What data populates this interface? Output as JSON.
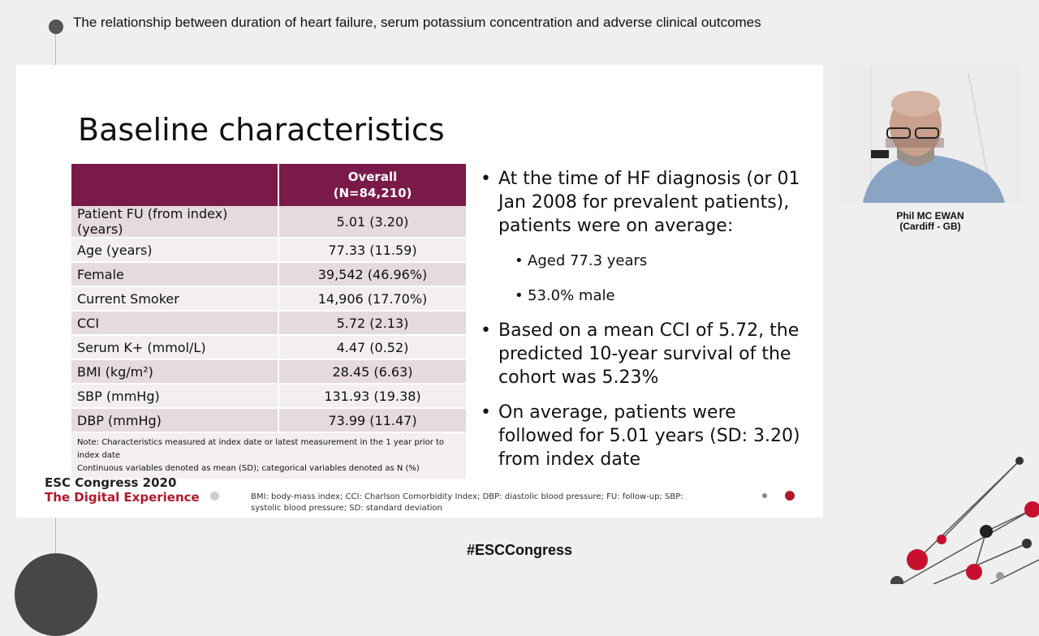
{
  "header": {
    "session_title": "The relationship between duration of heart failure, serum potassium concentration and adverse clinical outcomes"
  },
  "slide": {
    "title": "Baseline characteristics",
    "table": {
      "header_label": "",
      "header_col": "Overall",
      "header_n": "(N=84,210)",
      "rows": [
        {
          "label": "Patient FU (from index) (years)",
          "value": "5.01 (3.20)"
        },
        {
          "label": "Age (years)",
          "value": "77.33 (11.59)"
        },
        {
          "label": "Female",
          "value": "39,542 (46.96%)"
        },
        {
          "label": "Current Smoker",
          "value": "14,906 (17.70%)"
        },
        {
          "label": "CCI",
          "value": "5.72 (2.13)"
        },
        {
          "label": "Serum K+ (mmol/L)",
          "value": "4.47 (0.52)"
        },
        {
          "label": "BMI (kg/m²)",
          "value": "28.45 (6.63)"
        },
        {
          "label": "SBP (mmHg)",
          "value": "131.93 (19.38)"
        },
        {
          "label": "DBP (mmHg)",
          "value": "73.99 (11.47)"
        }
      ],
      "note_line1": "Note: Characteristics measured at index date or latest measurement in the 1 year prior to index date",
      "note_line2": "Continuous variables denoted as mean (SD); categorical variables denoted as N (%)"
    },
    "bullets": {
      "b1": "At the time of HF diagnosis (or 01 Jan 2008 for prevalent patients), patients were on average:",
      "b1_sub1": "Aged 77.3 years",
      "b1_sub2": "53.0% male",
      "b2": "Based on a mean CCI of 5.72, the predicted 10-year survival of the cohort was 5.23%",
      "b3": "On average, patients were followed for 5.01 years (SD: 3.20) from index date"
    },
    "footer": {
      "logo_line1": "ESC Congress 2020",
      "logo_line2": "The Digital Experience",
      "footnote": "BMI: body-mass index; CCI: Charlson Comorbidity Index; DBP: diastolic blood pressure; FU: follow-up; SBP: systolic blood pressure; SD: standard deviation"
    }
  },
  "speaker": {
    "name": "Phil MC EWAN",
    "affiliation": "(Cardiff - GB)"
  },
  "hashtag": "#ESCCongress",
  "colors": {
    "table_header": "#7a1a4a",
    "esc_red": "#b0192b"
  }
}
